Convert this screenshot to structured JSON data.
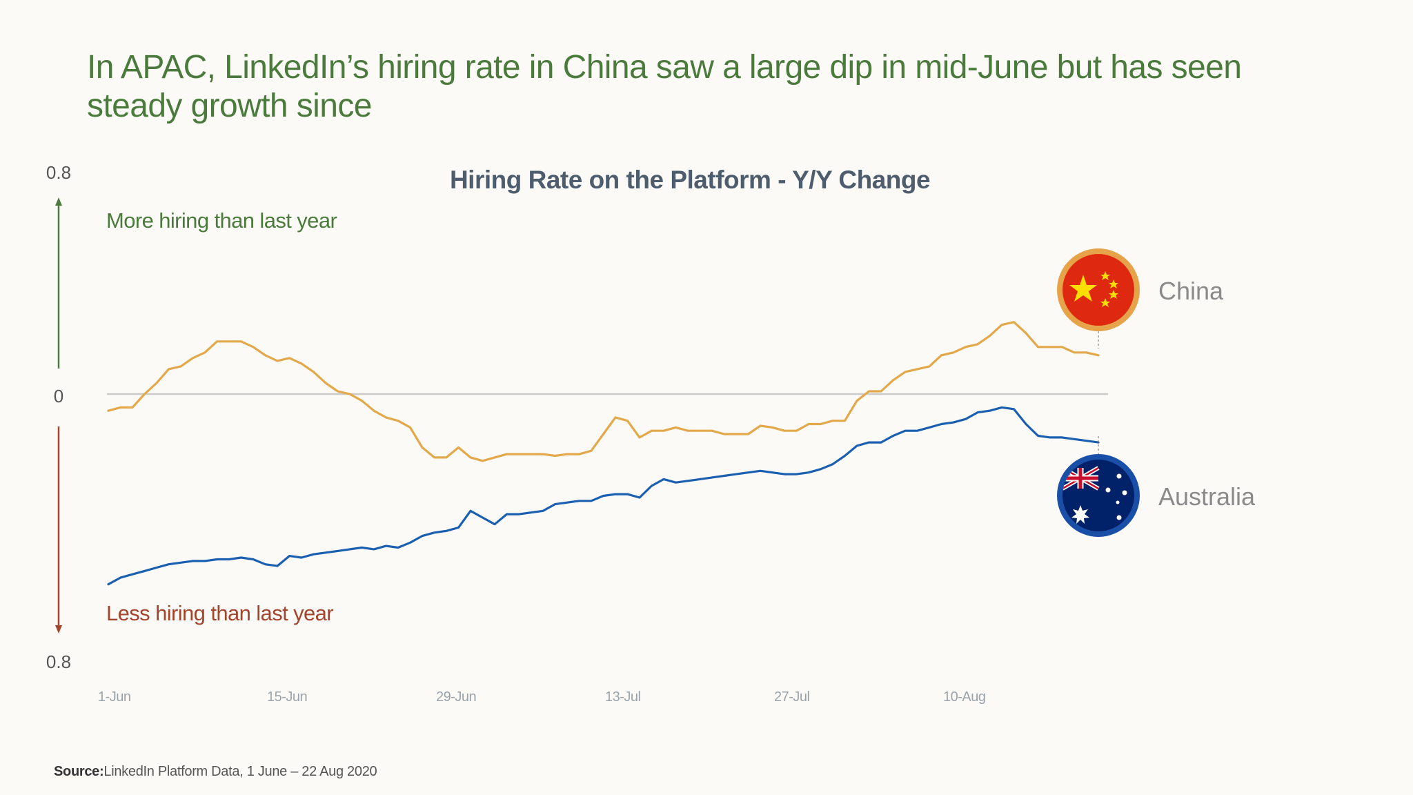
{
  "headline": "In APAC, LinkedIn’s hiring rate in China saw a large dip in mid-June but has seen steady growth since",
  "source": {
    "label": "Source:",
    "text": "LinkedIn Platform Data, 1 June – 22 Aug 2020"
  },
  "colors": {
    "china": "#e2a84a",
    "australia": "#1a5fb0",
    "zero_line": "#c9cbc9",
    "more_text": "#4a7a3c",
    "less_text": "#a3452c",
    "title": "#4d5d6e",
    "tick": "#9aa3aa"
  },
  "chart_data": {
    "type": "line",
    "title": "Hiring Rate on the Platform - Y/Y Change",
    "y_top_label": "0.8",
    "y_zero_label": "0",
    "y_bottom_label": "0.8",
    "ylim": [
      -0.8,
      0.8
    ],
    "up_annotation": "More hiring than last year",
    "down_annotation": "Less hiring than last year",
    "x_ticks": [
      "1-Jun",
      "15-Jun",
      "29-Jun",
      "13-Jul",
      "27-Jul",
      "10-Aug"
    ],
    "x_range_days": [
      0,
      82
    ],
    "series": [
      {
        "name": "China",
        "flag": "china-flag",
        "points": [
          [
            0,
            -0.05
          ],
          [
            1,
            -0.04
          ],
          [
            2,
            -0.04
          ],
          [
            3,
            0.0
          ],
          [
            4,
            0.04
          ],
          [
            5,
            0.09
          ],
          [
            6,
            0.1
          ],
          [
            7,
            0.13
          ],
          [
            8,
            0.15
          ],
          [
            9,
            0.19
          ],
          [
            10,
            0.19
          ],
          [
            11,
            0.19
          ],
          [
            12,
            0.17
          ],
          [
            13,
            0.14
          ],
          [
            14,
            0.12
          ],
          [
            15,
            0.13
          ],
          [
            16,
            0.11
          ],
          [
            17,
            0.08
          ],
          [
            18,
            0.04
          ],
          [
            19,
            0.01
          ],
          [
            20,
            0.0
          ],
          [
            21,
            -0.02
          ],
          [
            22,
            -0.05
          ],
          [
            23,
            -0.07
          ],
          [
            24,
            -0.08
          ],
          [
            25,
            -0.1
          ],
          [
            26,
            -0.16
          ],
          [
            27,
            -0.19
          ],
          [
            28,
            -0.19
          ],
          [
            29,
            -0.16
          ],
          [
            30,
            -0.19
          ],
          [
            31,
            -0.2
          ],
          [
            32,
            -0.19
          ],
          [
            33,
            -0.18
          ],
          [
            34,
            -0.18
          ],
          [
            35,
            -0.18
          ],
          [
            36,
            -0.18
          ],
          [
            37,
            -0.185
          ],
          [
            38,
            -0.18
          ],
          [
            39,
            -0.18
          ],
          [
            40,
            -0.17
          ],
          [
            41,
            -0.12
          ],
          [
            42,
            -0.07
          ],
          [
            43,
            -0.08
          ],
          [
            44,
            -0.13
          ],
          [
            45,
            -0.11
          ],
          [
            46,
            -0.11
          ],
          [
            47,
            -0.1
          ],
          [
            48,
            -0.11
          ],
          [
            49,
            -0.11
          ],
          [
            50,
            -0.11
          ],
          [
            51,
            -0.12
          ],
          [
            52,
            -0.12
          ],
          [
            53,
            -0.12
          ],
          [
            54,
            -0.095
          ],
          [
            55,
            -0.1
          ],
          [
            56,
            -0.11
          ],
          [
            57,
            -0.11
          ],
          [
            58,
            -0.09
          ],
          [
            59,
            -0.09
          ],
          [
            60,
            -0.08
          ],
          [
            61,
            -0.08
          ],
          [
            62,
            -0.02
          ],
          [
            63,
            0.01
          ],
          [
            64,
            0.01
          ],
          [
            65,
            0.05
          ],
          [
            66,
            0.08
          ],
          [
            67,
            0.09
          ],
          [
            68,
            0.1
          ],
          [
            69,
            0.14
          ],
          [
            70,
            0.15
          ],
          [
            71,
            0.17
          ],
          [
            72,
            0.18
          ],
          [
            73,
            0.21
          ],
          [
            74,
            0.25
          ],
          [
            75,
            0.26
          ],
          [
            76,
            0.22
          ],
          [
            77,
            0.17
          ],
          [
            78,
            0.17
          ],
          [
            79,
            0.17
          ],
          [
            80,
            0.15
          ],
          [
            81,
            0.15
          ],
          [
            82,
            0.14
          ]
        ]
      },
      {
        "name": "Australia",
        "flag": "australia-flag",
        "points": [
          [
            0,
            -0.57
          ],
          [
            1,
            -0.55
          ],
          [
            2,
            -0.54
          ],
          [
            3,
            -0.53
          ],
          [
            4,
            -0.52
          ],
          [
            5,
            -0.51
          ],
          [
            6,
            -0.505
          ],
          [
            7,
            -0.5
          ],
          [
            8,
            -0.5
          ],
          [
            9,
            -0.495
          ],
          [
            10,
            -0.495
          ],
          [
            11,
            -0.49
          ],
          [
            12,
            -0.495
          ],
          [
            13,
            -0.51
          ],
          [
            14,
            -0.515
          ],
          [
            15,
            -0.485
          ],
          [
            16,
            -0.49
          ],
          [
            17,
            -0.48
          ],
          [
            18,
            -0.475
          ],
          [
            19,
            -0.47
          ],
          [
            20,
            -0.465
          ],
          [
            21,
            -0.46
          ],
          [
            22,
            -0.465
          ],
          [
            23,
            -0.455
          ],
          [
            24,
            -0.46
          ],
          [
            25,
            -0.445
          ],
          [
            26,
            -0.425
          ],
          [
            27,
            -0.415
          ],
          [
            28,
            -0.41
          ],
          [
            29,
            -0.4
          ],
          [
            30,
            -0.35
          ],
          [
            31,
            -0.37
          ],
          [
            32,
            -0.39
          ],
          [
            33,
            -0.36
          ],
          [
            34,
            -0.36
          ],
          [
            35,
            -0.355
          ],
          [
            36,
            -0.35
          ],
          [
            37,
            -0.33
          ],
          [
            38,
            -0.325
          ],
          [
            39,
            -0.32
          ],
          [
            40,
            -0.32
          ],
          [
            41,
            -0.305
          ],
          [
            42,
            -0.3
          ],
          [
            43,
            -0.3
          ],
          [
            44,
            -0.31
          ],
          [
            45,
            -0.275
          ],
          [
            46,
            -0.255
          ],
          [
            47,
            -0.265
          ],
          [
            48,
            -0.26
          ],
          [
            49,
            -0.255
          ],
          [
            50,
            -0.25
          ],
          [
            51,
            -0.245
          ],
          [
            52,
            -0.24
          ],
          [
            53,
            -0.235
          ],
          [
            54,
            -0.23
          ],
          [
            55,
            -0.235
          ],
          [
            56,
            -0.24
          ],
          [
            57,
            -0.24
          ],
          [
            58,
            -0.235
          ],
          [
            59,
            -0.225
          ],
          [
            60,
            -0.21
          ],
          [
            61,
            -0.185
          ],
          [
            62,
            -0.155
          ],
          [
            63,
            -0.145
          ],
          [
            64,
            -0.145
          ],
          [
            65,
            -0.125
          ],
          [
            66,
            -0.11
          ],
          [
            67,
            -0.11
          ],
          [
            68,
            -0.1
          ],
          [
            69,
            -0.09
          ],
          [
            70,
            -0.085
          ],
          [
            71,
            -0.075
          ],
          [
            72,
            -0.055
          ],
          [
            73,
            -0.05
          ],
          [
            74,
            -0.04
          ],
          [
            75,
            -0.045
          ],
          [
            76,
            -0.09
          ],
          [
            77,
            -0.125
          ],
          [
            78,
            -0.13
          ],
          [
            79,
            -0.13
          ],
          [
            80,
            -0.135
          ],
          [
            81,
            -0.14
          ],
          [
            82,
            -0.145
          ]
        ]
      }
    ]
  }
}
